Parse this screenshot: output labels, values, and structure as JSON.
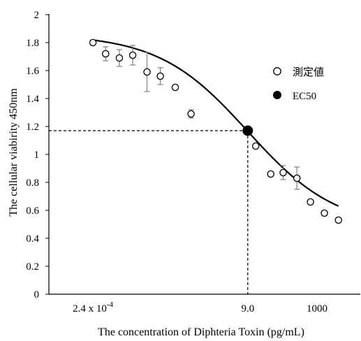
{
  "chart_data": {
    "type": "scatter",
    "xlabel": "The concentration of Diphteria Toxin (pg/mL)",
    "ylabel": "The cellular viabirity 450nm",
    "x_scale": "log",
    "x_ticks": [
      {
        "value": 0.00024,
        "label": "2.4 x 10",
        "sup": "-4"
      },
      {
        "value": 9.0,
        "label": "9.0",
        "sup": ""
      },
      {
        "value": 1000,
        "label": "1000",
        "sup": ""
      }
    ],
    "xlim": [
      1.2e-05,
      19000
    ],
    "ylim": [
      0,
      2
    ],
    "y_ticks": [
      0,
      0.2,
      0.4,
      0.6,
      0.8,
      1,
      1.2,
      1.4,
      1.6,
      1.8,
      2
    ],
    "grid": false,
    "legend_position": "right",
    "series": [
      {
        "name": "測定値",
        "marker": "open-circle",
        "points": [
          {
            "x": 0.00024,
            "y": 1.8,
            "err": 0
          },
          {
            "x": 0.00057,
            "y": 1.72,
            "err": 0.05
          },
          {
            "x": 0.00145,
            "y": 1.69,
            "err": 0.06
          },
          {
            "x": 0.0036,
            "y": 1.71,
            "err": 0.07
          },
          {
            "x": 0.0095,
            "y": 1.59,
            "err": 0.14
          },
          {
            "x": 0.0235,
            "y": 1.56,
            "err": 0.06
          },
          {
            "x": 0.065,
            "y": 1.48,
            "err": 0
          },
          {
            "x": 0.19,
            "y": 1.29,
            "err": 0.03
          },
          {
            "x": 15.5,
            "y": 1.06,
            "err": 0
          },
          {
            "x": 43,
            "y": 0.86,
            "err": 0
          },
          {
            "x": 100,
            "y": 0.87,
            "err": 0.05
          },
          {
            "x": 255,
            "y": 0.83,
            "err": 0.08
          },
          {
            "x": 640,
            "y": 0.66,
            "err": 0
          },
          {
            "x": 1650,
            "y": 0.58,
            "err": 0
          },
          {
            "x": 4300,
            "y": 0.53,
            "err": 0
          }
        ]
      },
      {
        "name": "EC50",
        "marker": "filled-circle",
        "points": [
          {
            "x": 9.0,
            "y": 1.17
          }
        ]
      }
    ],
    "fit_curve": {
      "top": 1.86,
      "bottom": 0.47,
      "ec50": 9.0,
      "hill": 0.33
    },
    "ec50_reference": {
      "x": 9.0,
      "y": 1.17,
      "style": "dashed"
    },
    "colors": {
      "axis": "#000000",
      "curve": "#000000",
      "error_bar": "#7f7f7f",
      "marker_fill_open": "#ffffff",
      "marker_fill_ec50": "#000000"
    }
  }
}
